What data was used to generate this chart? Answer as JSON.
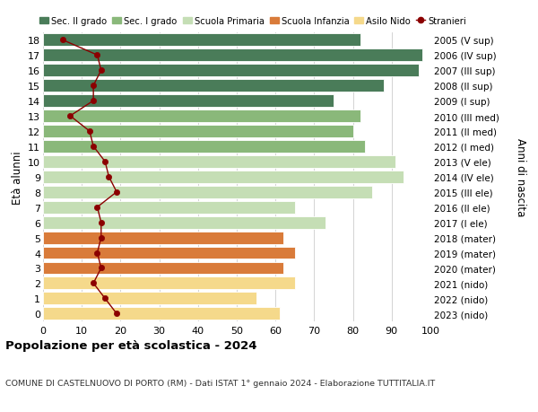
{
  "ages": [
    18,
    17,
    16,
    15,
    14,
    13,
    12,
    11,
    10,
    9,
    8,
    7,
    6,
    5,
    4,
    3,
    2,
    1,
    0
  ],
  "years": [
    "2005 (V sup)",
    "2006 (IV sup)",
    "2007 (III sup)",
    "2008 (II sup)",
    "2009 (I sup)",
    "2010 (III med)",
    "2011 (II med)",
    "2012 (I med)",
    "2013 (V ele)",
    "2014 (IV ele)",
    "2015 (III ele)",
    "2016 (II ele)",
    "2017 (I ele)",
    "2018 (mater)",
    "2019 (mater)",
    "2020 (mater)",
    "2021 (nido)",
    "2022 (nido)",
    "2023 (nido)"
  ],
  "bar_values": [
    82,
    98,
    97,
    88,
    75,
    82,
    80,
    83,
    91,
    93,
    85,
    65,
    73,
    62,
    65,
    62,
    65,
    55,
    61
  ],
  "bar_colors": [
    "#4a7c59",
    "#4a7c59",
    "#4a7c59",
    "#4a7c59",
    "#4a7c59",
    "#8ab87a",
    "#8ab87a",
    "#8ab87a",
    "#c5deb5",
    "#c5deb5",
    "#c5deb5",
    "#c5deb5",
    "#c5deb5",
    "#d97b3a",
    "#d97b3a",
    "#d97b3a",
    "#f5d98b",
    "#f5d98b",
    "#f5d98b"
  ],
  "stranieri": [
    5,
    14,
    15,
    13,
    13,
    7,
    12,
    13,
    16,
    17,
    19,
    14,
    15,
    15,
    14,
    15,
    13,
    16,
    19
  ],
  "stranieri_color": "#8b0000",
  "legend_labels": [
    "Sec. II grado",
    "Sec. I grado",
    "Scuola Primaria",
    "Scuola Infanzia",
    "Asilo Nido",
    "Stranieri"
  ],
  "legend_colors": [
    "#4a7c59",
    "#8ab87a",
    "#c5deb5",
    "#d97b3a",
    "#f5d98b",
    "#8b0000"
  ],
  "ylabel_left": "Età alunni",
  "ylabel_right": "Anni di nascita",
  "title": "Popolazione per età scolastica - 2024",
  "subtitle": "COMUNE DI CASTELNUOVO DI PORTO (RM) - Dati ISTAT 1° gennaio 2024 - Elaborazione TUTTITALIA.IT",
  "xlim": [
    0,
    100
  ],
  "xticks": [
    0,
    10,
    20,
    30,
    40,
    50,
    60,
    70,
    80,
    90,
    100
  ],
  "bg_color": "#ffffff",
  "bar_height": 0.82
}
